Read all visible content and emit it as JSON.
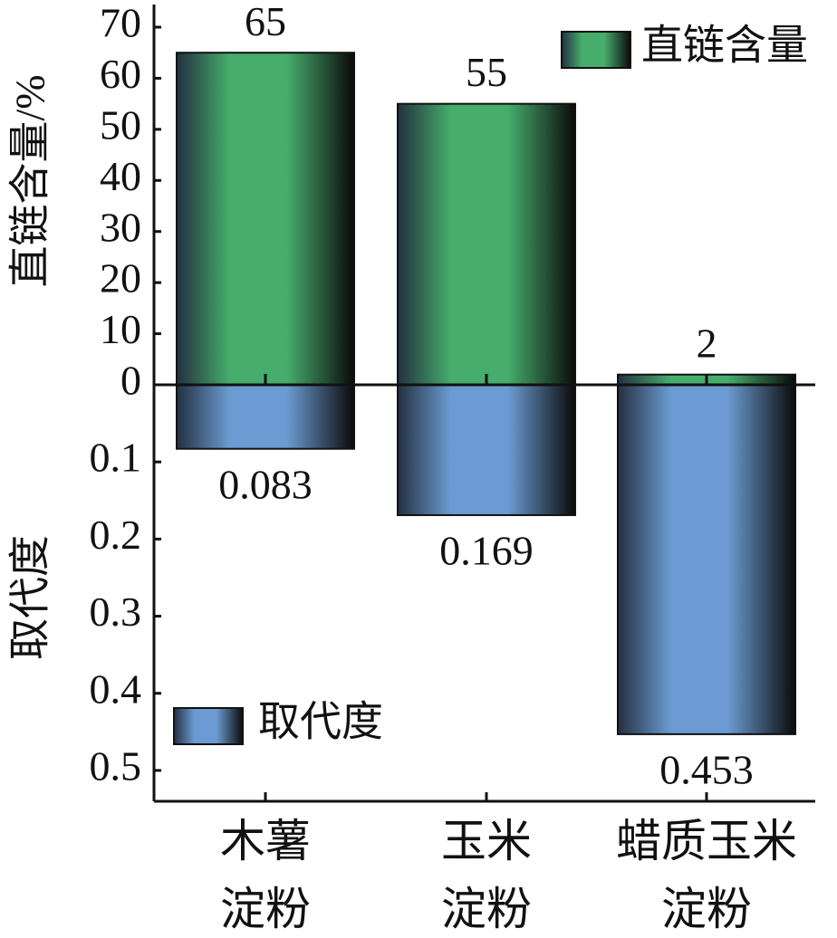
{
  "chart_data": {
    "type": "bar",
    "categories": [
      "木薯\n淀粉",
      "玉米\n淀粉",
      "蜡质玉米\n淀粉"
    ],
    "series": [
      {
        "name": "直链含量",
        "color": "#46ad6c",
        "values": [
          65,
          55,
          2
        ]
      },
      {
        "name": "取代度",
        "color": "#6b9bd2",
        "values": [
          0.083,
          0.169,
          0.453
        ],
        "axis": "y2"
      }
    ],
    "ylabel": "直链含量/%",
    "y2label": "取代度",
    "ylim": [
      0,
      70
    ],
    "yticks": [
      0,
      10,
      20,
      30,
      40,
      50,
      60,
      70
    ],
    "y2lim": [
      0,
      0.54
    ],
    "y2ticks": [
      0.1,
      0.2,
      0.3,
      0.4,
      0.5
    ]
  }
}
